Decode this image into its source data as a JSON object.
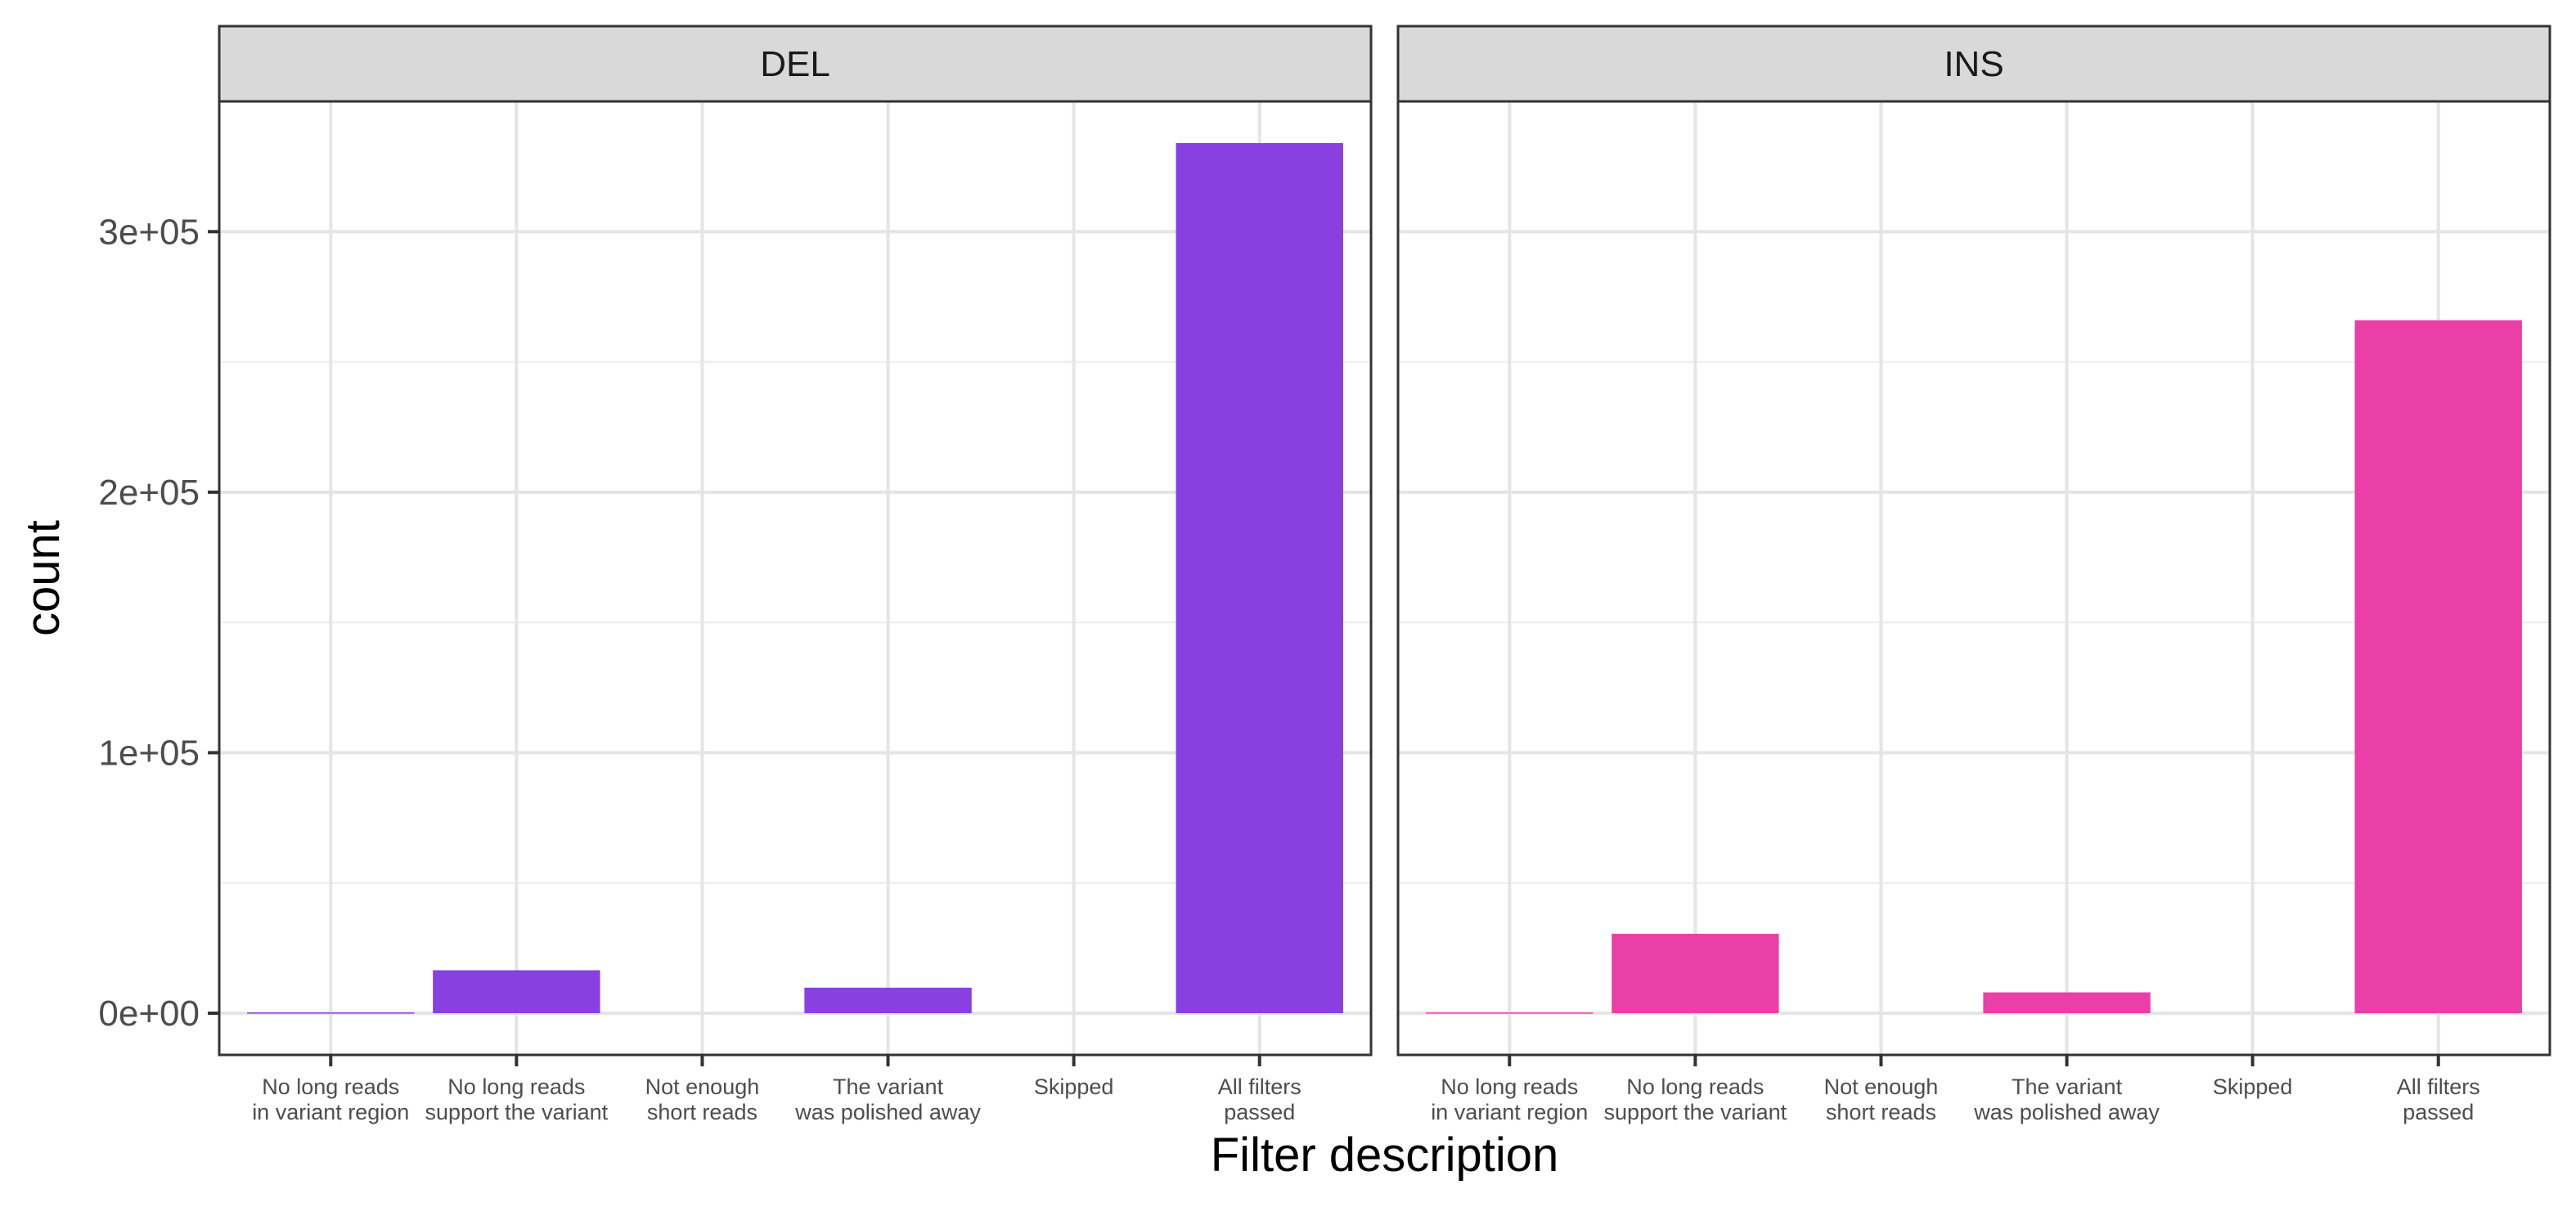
{
  "chart_data": {
    "type": "bar",
    "xlabel": "Filter description",
    "ylabel": "count",
    "ylim": [
      -16000,
      350000
    ],
    "y_ticks": [
      {
        "value": 0,
        "label": "0e+00"
      },
      {
        "value": 100000,
        "label": "1e+05"
      },
      {
        "value": 200000,
        "label": "2e+05"
      },
      {
        "value": 300000,
        "label": "3e+05"
      }
    ],
    "categories": [
      {
        "line1": "No long reads",
        "line2": "in variant region"
      },
      {
        "line1": "No long reads",
        "line2": "support the variant"
      },
      {
        "line1": "Not enough",
        "line2": "short reads"
      },
      {
        "line1": "The variant",
        "line2": "was polished away"
      },
      {
        "line1": "Skipped",
        "line2": ""
      },
      {
        "line1": "All filters",
        "line2": "passed"
      }
    ],
    "facets": [
      {
        "name": "DEL",
        "color": "#8840e0",
        "values": [
          300,
          16500,
          0,
          9800,
          0,
          334000
        ]
      },
      {
        "name": "INS",
        "color": "#ea3fa6",
        "values": [
          300,
          30500,
          0,
          8000,
          0,
          266000
        ]
      }
    ],
    "grid": true,
    "legend": "none"
  }
}
